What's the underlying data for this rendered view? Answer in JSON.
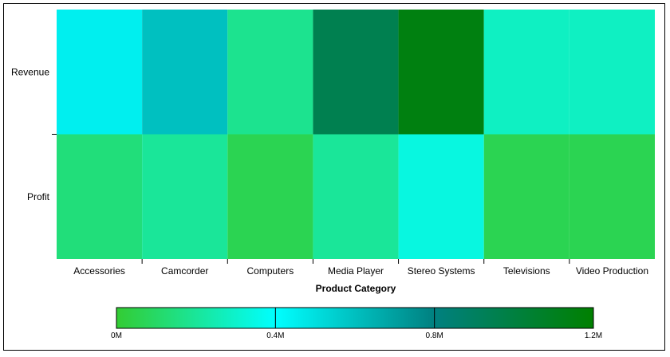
{
  "chart_data": {
    "type": "heatmap",
    "title": "",
    "xlabel": "Product Category",
    "ylabel": "",
    "x_categories": [
      "Accessories",
      "Camcorder",
      "Computers",
      "Media Player",
      "Stereo Systems",
      "Televisions",
      "Video Production"
    ],
    "y_categories": [
      "Revenue",
      "Profit"
    ],
    "values": [
      [
        450000,
        600000,
        180000,
        950000,
        1150000,
        280000,
        280000
      ],
      [
        140000,
        200000,
        60000,
        200000,
        340000,
        60000,
        60000
      ]
    ],
    "color_range": [
      0,
      1200000
    ],
    "color_stops": [
      {
        "value": 0,
        "color": "#33cc33"
      },
      {
        "value": 400000,
        "color": "#00ffff"
      },
      {
        "value": 800000,
        "color": "#008080"
      },
      {
        "value": 1200000,
        "color": "#008000"
      }
    ],
    "legend": {
      "placement": "bottom",
      "ticks": [
        "0M",
        "0.4M",
        "0.8M",
        "1.2M"
      ]
    }
  }
}
